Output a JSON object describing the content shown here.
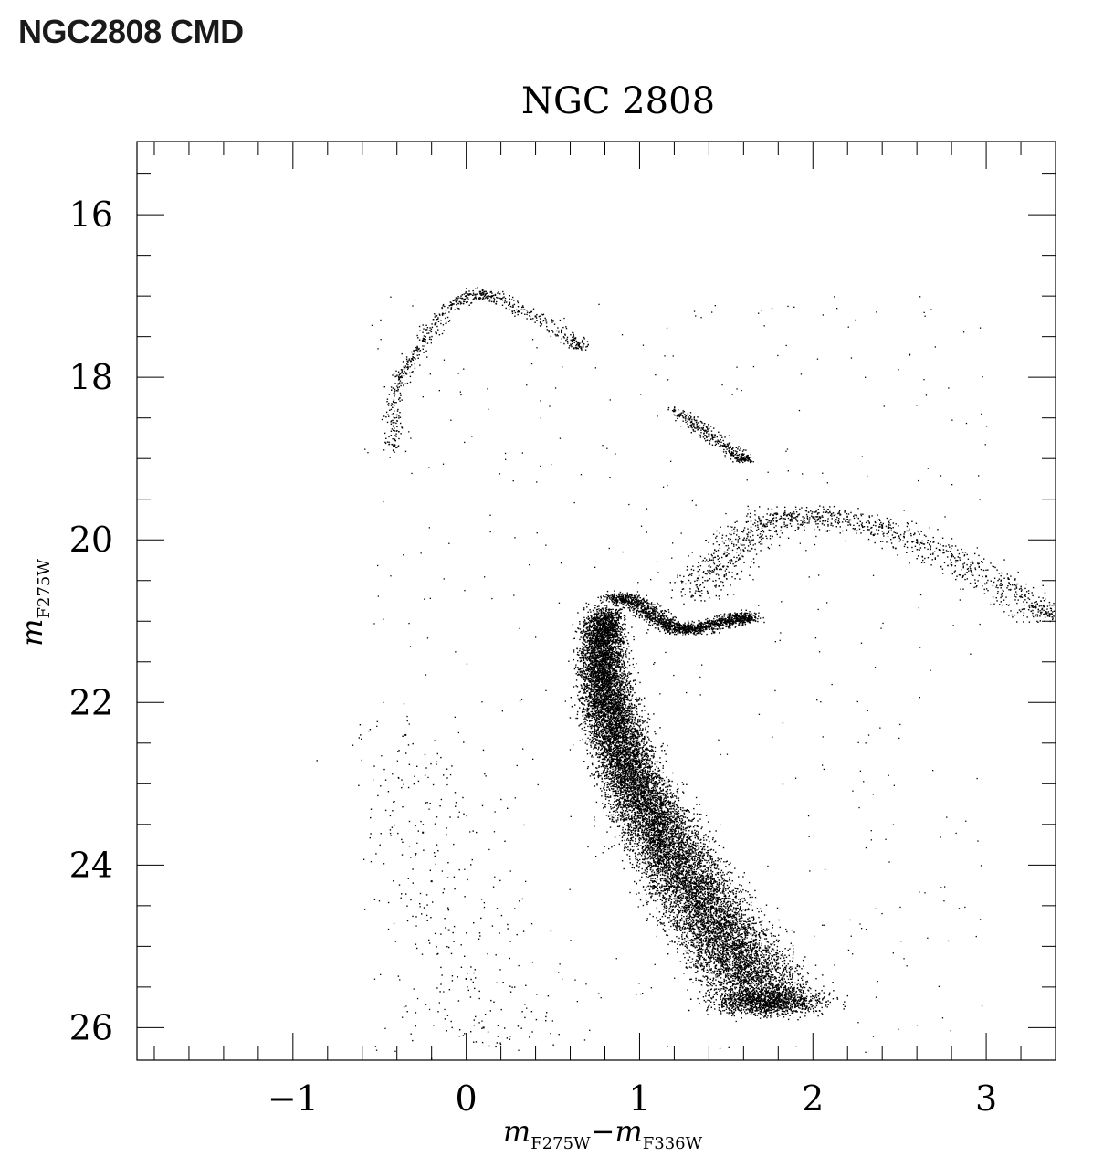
{
  "page": {
    "title": "NGC2808 CMD"
  },
  "chart_data": {
    "type": "scatter",
    "title": "NGC 2808",
    "xlabel": {
      "main": "m",
      "sub1": "F275W",
      "minus": "−",
      "main2": "m",
      "sub2": "F336W"
    },
    "ylabel": {
      "main": "m",
      "sub": "F275W"
    },
    "xlim": [
      -1.9,
      3.4
    ],
    "ylim": [
      26.4,
      15.1
    ],
    "y_inverted": true,
    "xticks": [
      -1,
      0,
      1,
      2,
      3
    ],
    "xtick_labels": [
      "−1",
      "0",
      "1",
      "2",
      "3"
    ],
    "yticks": [
      16,
      18,
      20,
      22,
      24,
      26
    ],
    "ytick_labels": [
      "16",
      "18",
      "20",
      "22",
      "24",
      "26"
    ],
    "grid": false,
    "marker_color": "#000000",
    "series": [
      {
        "id": "main-sequence",
        "points": [
          [
            0.8,
            20.9
          ],
          [
            0.78,
            21.2
          ],
          [
            0.78,
            21.5
          ],
          [
            0.8,
            21.8
          ],
          [
            0.83,
            22.1
          ],
          [
            0.87,
            22.4
          ],
          [
            0.92,
            22.7
          ],
          [
            0.98,
            23.0
          ],
          [
            1.05,
            23.3
          ],
          [
            1.12,
            23.6
          ],
          [
            1.2,
            23.9
          ],
          [
            1.28,
            24.2
          ],
          [
            1.36,
            24.5
          ],
          [
            1.45,
            24.8
          ],
          [
            1.55,
            25.1
          ],
          [
            1.65,
            25.4
          ],
          [
            1.75,
            25.7
          ]
        ]
      },
      {
        "id": "subgiant-branch",
        "points": [
          [
            0.85,
            20.7
          ],
          [
            0.92,
            20.72
          ],
          [
            1.0,
            20.8
          ],
          [
            1.08,
            20.92
          ],
          [
            1.15,
            21.02
          ],
          [
            1.22,
            21.08
          ],
          [
            1.3,
            21.1
          ],
          [
            1.4,
            21.05
          ],
          [
            1.5,
            21.0
          ],
          [
            1.6,
            20.95
          ]
        ]
      },
      {
        "id": "red-giant-branch",
        "points": [
          [
            1.3,
            20.7
          ],
          [
            1.4,
            20.4
          ],
          [
            1.5,
            20.2
          ],
          [
            1.6,
            20.0
          ],
          [
            1.7,
            19.8
          ],
          [
            1.85,
            19.7
          ],
          [
            2.0,
            19.72
          ],
          [
            2.2,
            19.75
          ],
          [
            2.4,
            19.85
          ],
          [
            2.6,
            20.0
          ],
          [
            2.8,
            20.2
          ],
          [
            3.0,
            20.45
          ],
          [
            3.2,
            20.7
          ],
          [
            3.35,
            20.9
          ]
        ]
      },
      {
        "id": "red-clump",
        "points": [
          [
            1.2,
            18.4
          ],
          [
            1.3,
            18.55
          ],
          [
            1.4,
            18.7
          ],
          [
            1.5,
            18.85
          ],
          [
            1.6,
            19.0
          ]
        ]
      },
      {
        "id": "horizontal-branch",
        "points": [
          [
            -0.42,
            18.9
          ],
          [
            -0.42,
            18.6
          ],
          [
            -0.42,
            18.3
          ],
          [
            -0.38,
            18.0
          ],
          [
            -0.32,
            17.8
          ],
          [
            -0.25,
            17.55
          ],
          [
            -0.18,
            17.35
          ],
          [
            -0.08,
            17.1
          ],
          [
            0.0,
            17.0
          ],
          [
            0.08,
            16.95
          ],
          [
            0.15,
            17.0
          ],
          [
            0.25,
            17.1
          ],
          [
            0.4,
            17.25
          ],
          [
            0.55,
            17.45
          ],
          [
            0.65,
            17.6
          ]
        ]
      },
      {
        "id": "blue-stragglers",
        "points": [
          [
            -0.35,
            22.4
          ],
          [
            -0.3,
            23.0
          ],
          [
            -0.25,
            23.6
          ],
          [
            -0.2,
            24.2
          ],
          [
            -0.1,
            24.8
          ],
          [
            0.0,
            25.4
          ],
          [
            0.1,
            26.0
          ]
        ]
      }
    ]
  }
}
